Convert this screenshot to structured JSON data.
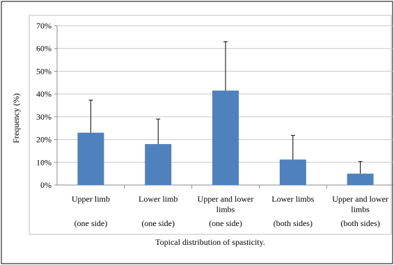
{
  "chart_data": {
    "type": "bar",
    "title": "",
    "xlabel": "Topical distribution of spasticity.",
    "ylabel": "Frequency (%)",
    "ylim": [
      0,
      70
    ],
    "yticks": [
      "0%",
      "10%",
      "20%",
      "30%",
      "40%",
      "50%",
      "60%",
      "70%"
    ],
    "grid": true,
    "categories": [
      [
        "Upper limb",
        "",
        "(one side)"
      ],
      [
        "Lower limb",
        "",
        "(one side)"
      ],
      [
        "Upper and lower",
        "limbs",
        "(one side)"
      ],
      [
        "Lower limbs",
        "",
        "(both sides)"
      ],
      [
        "Upper and lower",
        "limbs",
        "(both sides)"
      ]
    ],
    "values": [
      23,
      18,
      41.5,
      11.2,
      5
    ],
    "error_upper": [
      37.3,
      29,
      63,
      21.8,
      10.3
    ],
    "bar_color": "#4f81bd",
    "grid_color": "#c8c8c8"
  }
}
